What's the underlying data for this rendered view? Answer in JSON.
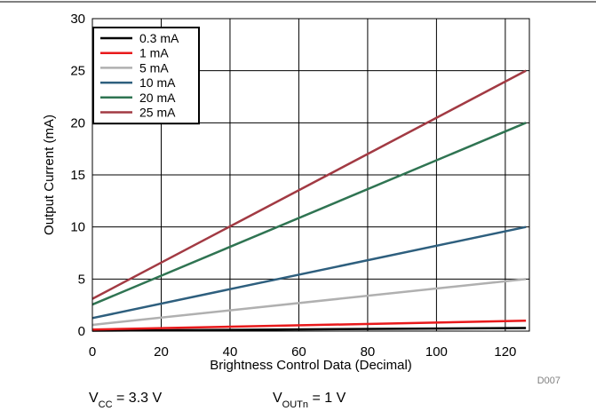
{
  "chart_data": {
    "type": "line",
    "xlabel": "Brightness Control Data (Decimal)",
    "ylabel": "Output Current (mA)",
    "xlim": [
      0,
      127
    ],
    "ylim": [
      0,
      30
    ],
    "x_ticks": [
      0,
      20,
      40,
      60,
      80,
      100,
      120
    ],
    "y_ticks": [
      0,
      5,
      10,
      15,
      20,
      25,
      30
    ],
    "grid": true,
    "legend_position": "top-left",
    "series": [
      {
        "name": "0.3 mA",
        "color": "#000000",
        "x": [
          0,
          126
        ],
        "y": [
          0.04,
          0.3
        ]
      },
      {
        "name": "1 mA",
        "color": "#e8191b",
        "x": [
          0,
          126
        ],
        "y": [
          0.15,
          1.0
        ]
      },
      {
        "name": "5 mA",
        "color": "#b0b0b0",
        "x": [
          0,
          126
        ],
        "y": [
          0.6,
          5.0
        ]
      },
      {
        "name": "10 mA",
        "color": "#2e5f7e",
        "x": [
          0,
          126
        ],
        "y": [
          1.25,
          10.0
        ]
      },
      {
        "name": "20 mA",
        "color": "#2f7452",
        "x": [
          0,
          126
        ],
        "y": [
          2.55,
          20.0
        ]
      },
      {
        "name": "25 mA",
        "color": "#a23a43",
        "x": [
          0,
          126
        ],
        "y": [
          3.1,
          25.0
        ]
      }
    ]
  },
  "figure_id": "D007",
  "conditions": {
    "vcc": {
      "main": "V",
      "sub": "CC",
      "value": " = 3.3 V"
    },
    "vout": {
      "main": "V",
      "sub": "OUTn",
      "value": " = 1 V"
    }
  }
}
